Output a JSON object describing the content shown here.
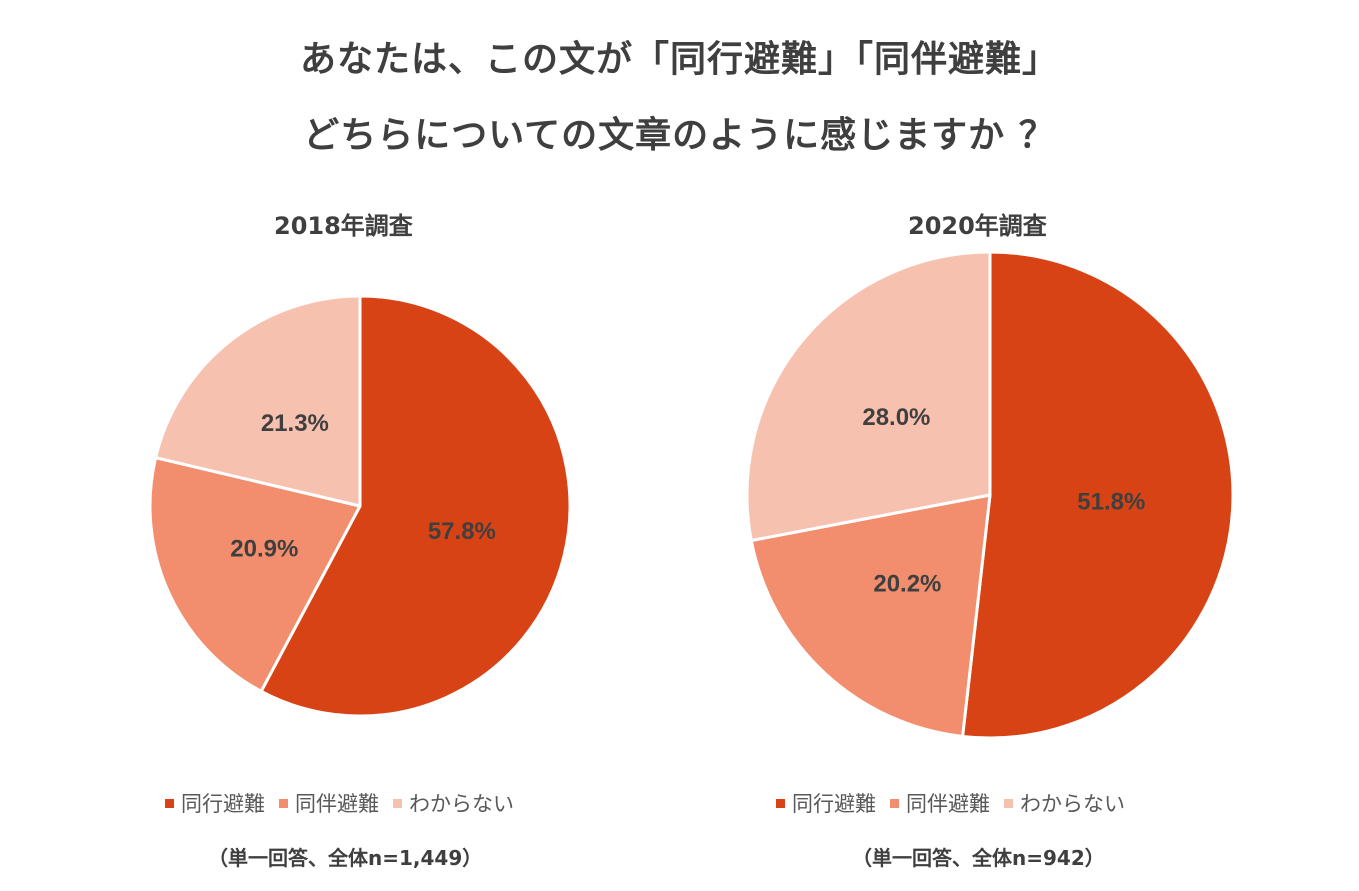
{
  "title": {
    "line1": "あなたは、この文が「同行避難」「同伴避難」",
    "line2": "どちらについての文章のように感じますか ？"
  },
  "colors": {
    "dokou": "#d84315",
    "douhan": "#f28e6e",
    "wakaranai": "#f7c1b0"
  },
  "chart_data": [
    {
      "type": "pie",
      "title": "2018年調査",
      "labels": [
        "同行避難",
        "同伴避難",
        "わからない"
      ],
      "values": [
        57.8,
        20.9,
        21.3
      ],
      "value_labels": [
        "57.8%",
        "20.9%",
        "21.3%"
      ],
      "colors": [
        "#d84315",
        "#f28e6e",
        "#f7c1b0"
      ],
      "legend": "bottom",
      "note": "（単一回答、全体n=1,449）"
    },
    {
      "type": "pie",
      "title": "2020年調査",
      "labels": [
        "同行避難",
        "同伴避難",
        "わからない"
      ],
      "values": [
        51.8,
        20.2,
        28.0
      ],
      "value_labels": [
        "51.8%",
        "20.2%",
        "28.0%"
      ],
      "colors": [
        "#d84315",
        "#f28e6e",
        "#f7c1b0"
      ],
      "legend": "bottom",
      "note": "（単一回答、全体n=942）"
    }
  ]
}
